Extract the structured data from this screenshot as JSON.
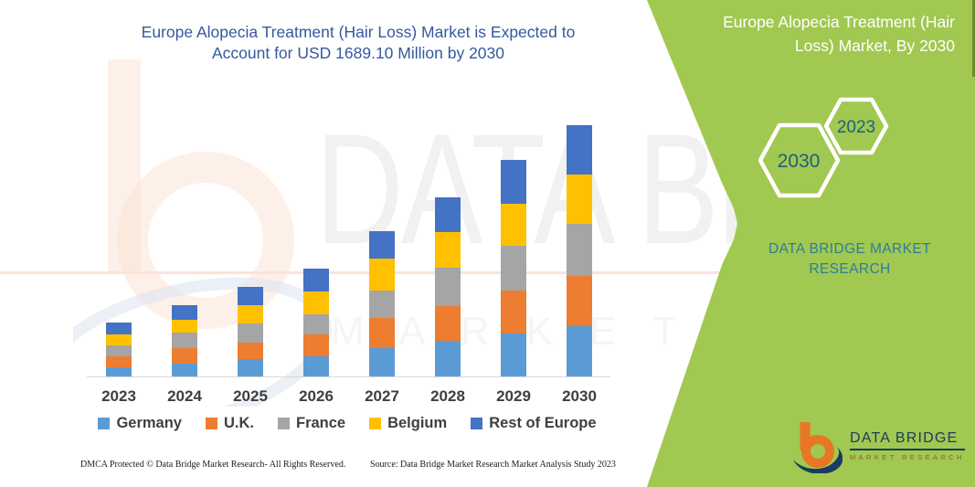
{
  "main_title": {
    "line1": "Europe Alopecia Treatment (Hair Loss) Market is Expected to",
    "line2": "Account for USD 1689.10 Million by 2030"
  },
  "chart_data": {
    "type": "bar",
    "stacked": true,
    "unit": "USD Million",
    "title": "Europe Alopecia Treatment (Hair Loss) Market is Expected to Account for USD 1689.10 Million by 2030",
    "xlabel": "",
    "ylabel": "",
    "ylim": [
      0,
      1732
    ],
    "grid": false,
    "legend_position": "bottom",
    "categories": [
      "2023",
      "2024",
      "2025",
      "2026",
      "2027",
      "2028",
      "2029",
      "2030"
    ],
    "series": [
      {
        "name": "Germany",
        "color": "#5B9BD5",
        "values": [
          61,
          86,
          117,
          135,
          190,
          240,
          289,
          338
        ]
      },
      {
        "name": "U.K.",
        "color": "#ED7D31",
        "values": [
          74,
          104,
          111,
          147,
          203,
          233,
          289,
          338
        ]
      },
      {
        "name": "France",
        "color": "#A5A5A5",
        "values": [
          74,
          104,
          129,
          135,
          184,
          258,
          301,
          350
        ]
      },
      {
        "name": "Belgium",
        "color": "#FFC000",
        "values": [
          74,
          86,
          123,
          154,
          215,
          240,
          283,
          332
        ]
      },
      {
        "name": "Rest of Europe",
        "color": "#4472C4",
        "values": [
          80,
          98,
          123,
          154,
          184,
          233,
          295,
          331
        ]
      }
    ],
    "totals": [
      363,
      478,
      603,
      725,
      976,
      1204,
      1457,
      1689
    ],
    "annotation_total_2030": "USD 1689.10 Million"
  },
  "side_panel": {
    "title_line1": "Europe Alopecia Treatment (Hair",
    "title_line2": "Loss) Market, By 2030",
    "hexagon_small_label": "2023",
    "hexagon_large_label": "2030",
    "brand_line1": "DATA BRIDGE MARKET",
    "brand_line2": "RESEARCH",
    "panel_color": "#A1C851",
    "brand_text_color": "#2F7C9D"
  },
  "logo": {
    "name": "DATA BRIDGE",
    "subtitle": "MARKET RESEARCH",
    "orange": "#E87625",
    "navy": "#1C3B5E"
  },
  "watermark": {
    "big_text": "DATA BRIDGE",
    "sub_text": "M A R K E T   R E S E A R C H"
  },
  "footer": {
    "left": "DMCA Protected © Data Bridge Market Research-  All Rights Reserved.",
    "source": "Source: Data Bridge Market Research  Market Analysis Study 2023"
  }
}
